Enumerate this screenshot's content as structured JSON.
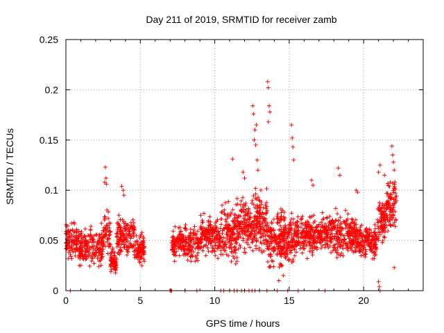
{
  "chart_data": {
    "type": "scatter",
    "title": "Day 211 of 2019, SRMTID for receiver zamb",
    "xlabel": "GPS time / hours",
    "ylabel": "SRMTID / TECUs",
    "xlim": [
      0,
      24
    ],
    "ylim": [
      0,
      0.25
    ],
    "xticks": [
      0,
      5,
      10,
      15,
      20
    ],
    "yticks": [
      0,
      0.05,
      0.1,
      0.15,
      0.2,
      0.25
    ],
    "xtick_labels": [
      "0",
      "5",
      "10",
      "15",
      "20"
    ],
    "ytick_labels": [
      "0",
      "0.05",
      "0.1",
      "0.15",
      "0.2",
      "0.25"
    ],
    "grid": true,
    "marker": "+",
    "marker_color": "#ff0000",
    "series": [
      {
        "name": "SRMTID",
        "profile": [
          {
            "x0": 0.0,
            "x1": 0.8,
            "lo": 0.025,
            "hi": 0.075,
            "n": 90
          },
          {
            "x0": 0.8,
            "x1": 2.5,
            "lo": 0.018,
            "hi": 0.07,
            "n": 190
          },
          {
            "x0": 2.5,
            "x1": 3.0,
            "lo": 0.025,
            "hi": 0.09,
            "n": 50
          },
          {
            "x0": 3.0,
            "x1": 3.4,
            "lo": 0.012,
            "hi": 0.045,
            "n": 60
          },
          {
            "x0": 3.4,
            "x1": 4.6,
            "lo": 0.03,
            "hi": 0.08,
            "n": 140
          },
          {
            "x0": 4.6,
            "x1": 5.3,
            "lo": 0.022,
            "hi": 0.06,
            "n": 80
          },
          {
            "x0": 7.1,
            "x1": 9.0,
            "lo": 0.025,
            "hi": 0.07,
            "n": 200
          },
          {
            "x0": 9.0,
            "x1": 10.4,
            "lo": 0.028,
            "hi": 0.08,
            "n": 160
          },
          {
            "x0": 10.4,
            "x1": 11.5,
            "lo": 0.02,
            "hi": 0.095,
            "n": 140
          },
          {
            "x0": 11.5,
            "x1": 12.6,
            "lo": 0.03,
            "hi": 0.1,
            "n": 140
          },
          {
            "x0": 12.6,
            "x1": 13.5,
            "lo": 0.025,
            "hi": 0.11,
            "n": 130
          },
          {
            "x0": 13.5,
            "x1": 14.5,
            "lo": 0.015,
            "hi": 0.09,
            "n": 140
          },
          {
            "x0": 14.5,
            "x1": 15.5,
            "lo": 0.02,
            "hi": 0.085,
            "n": 140
          },
          {
            "x0": 15.5,
            "x1": 17.5,
            "lo": 0.03,
            "hi": 0.08,
            "n": 240
          },
          {
            "x0": 17.5,
            "x1": 19.5,
            "lo": 0.028,
            "hi": 0.085,
            "n": 240
          },
          {
            "x0": 19.5,
            "x1": 20.9,
            "lo": 0.028,
            "hi": 0.07,
            "n": 170
          },
          {
            "x0": 20.9,
            "x1": 21.5,
            "lo": 0.04,
            "hi": 0.1,
            "n": 80
          },
          {
            "x0": 21.5,
            "x1": 22.2,
            "lo": 0.05,
            "hi": 0.125,
            "n": 90
          }
        ],
        "peaks": [
          [
            2.65,
            0.123
          ],
          [
            2.7,
            0.112
          ],
          [
            2.72,
            0.106
          ],
          [
            2.6,
            0.108
          ],
          [
            3.75,
            0.104
          ],
          [
            3.85,
            0.1
          ],
          [
            3.9,
            0.095
          ],
          [
            12.55,
            0.184
          ],
          [
            12.6,
            0.176
          ],
          [
            12.7,
            0.16
          ],
          [
            12.65,
            0.15
          ],
          [
            12.75,
            0.145
          ],
          [
            12.8,
            0.165
          ],
          [
            12.85,
            0.13
          ],
          [
            12.9,
            0.12
          ],
          [
            13.55,
            0.208
          ],
          [
            13.6,
            0.202
          ],
          [
            13.65,
            0.184
          ],
          [
            13.6,
            0.168
          ],
          [
            13.7,
            0.178
          ],
          [
            15.15,
            0.165
          ],
          [
            15.2,
            0.152
          ],
          [
            15.25,
            0.143
          ],
          [
            15.3,
            0.13
          ],
          [
            11.2,
            0.131
          ],
          [
            11.9,
            0.118
          ],
          [
            12.0,
            0.112
          ],
          [
            16.5,
            0.11
          ],
          [
            16.6,
            0.105
          ],
          [
            18.3,
            0.122
          ],
          [
            18.4,
            0.115
          ],
          [
            19.5,
            0.1
          ],
          [
            19.6,
            0.098
          ],
          [
            21.0,
            0.118
          ],
          [
            21.1,
            0.125
          ],
          [
            21.4,
            0.115
          ],
          [
            21.9,
            0.144
          ],
          [
            21.95,
            0.135
          ],
          [
            22.0,
            0.128
          ],
          [
            22.05,
            0.12
          ],
          [
            14.3,
            0.01
          ],
          [
            14.6,
            0.015
          ],
          [
            21.05,
            0.004
          ],
          [
            21.0,
            0.009
          ],
          [
            22.05,
            0.023
          ]
        ],
        "zeros": [
          0.3,
          7.0,
          7.05,
          7.1,
          8.0,
          8.8,
          10.4,
          10.6,
          11.0,
          11.3,
          11.5,
          11.8,
          12.0,
          12.3,
          12.5,
          12.7,
          13.0,
          13.5,
          14.2,
          14.9,
          15.6,
          17.4,
          21.1
        ]
      }
    ]
  }
}
